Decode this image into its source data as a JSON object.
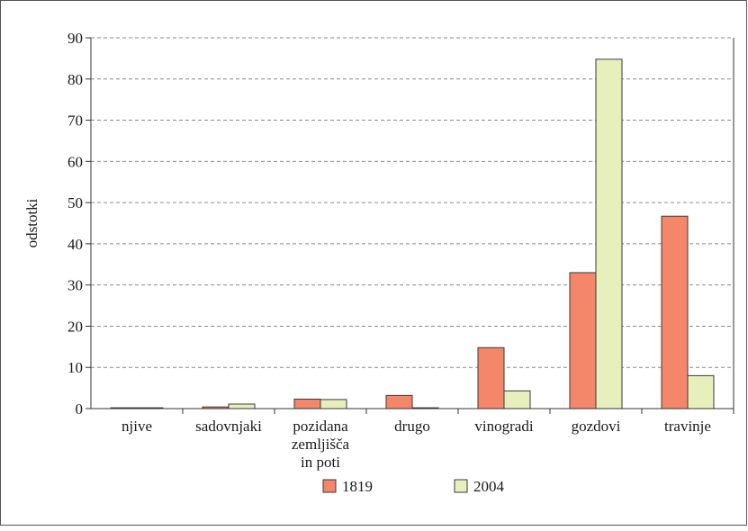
{
  "chart_data": {
    "type": "bar",
    "title": "",
    "xlabel": "",
    "ylabel": "odstotki",
    "ylim": [
      0,
      90
    ],
    "yticks": [
      0,
      10,
      20,
      30,
      40,
      50,
      60,
      70,
      80,
      90
    ],
    "grid": "horizontal dashed",
    "legend_position": "bottom",
    "categories": [
      [
        "njive"
      ],
      [
        "sadovnjaki"
      ],
      [
        "pozidana",
        "zemljišča",
        "in poti"
      ],
      [
        "drugo"
      ],
      [
        "vinogradi"
      ],
      [
        "gozdovi"
      ],
      [
        "travinje"
      ]
    ],
    "series": [
      {
        "name": "1819",
        "color": "#f4866a",
        "values": [
          0.2,
          0.4,
          2.3,
          3.2,
          14.8,
          33.0,
          46.7
        ]
      },
      {
        "name": "2004",
        "color": "#e7f0bd",
        "values": [
          0.2,
          1.1,
          2.2,
          0.2,
          4.3,
          84.8,
          8.0
        ]
      }
    ]
  }
}
